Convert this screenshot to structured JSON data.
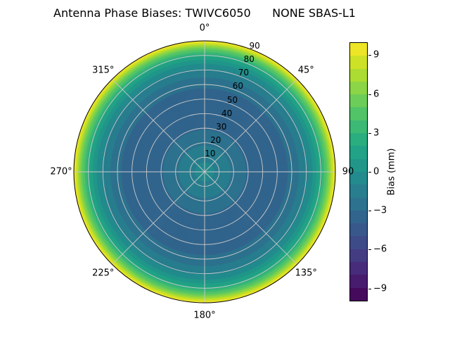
{
  "figure": {
    "background": "#ffffff"
  },
  "chart_data": {
    "type": "polar_contour",
    "title": "Antenna Phase Biases: TWIVC6050      NONE SBAS-L1",
    "radial_axis_max": 90,
    "rlabel_angle_deg": 22.5,
    "symmetry": "azimuthal",
    "theta_labels": [
      {
        "angle_deg": 0,
        "label": "0°"
      },
      {
        "angle_deg": 45,
        "label": "45°"
      },
      {
        "angle_deg": 90,
        "label": "90"
      },
      {
        "angle_deg": 135,
        "label": "135°"
      },
      {
        "angle_deg": 180,
        "label": "180°"
      },
      {
        "angle_deg": 225,
        "label": "225°"
      },
      {
        "angle_deg": 270,
        "label": "270°"
      },
      {
        "angle_deg": 315,
        "label": "315°"
      }
    ],
    "radial_ticks": [
      {
        "r": 10,
        "label": "10"
      },
      {
        "r": 20,
        "label": "20"
      },
      {
        "r": 30,
        "label": "30"
      },
      {
        "r": 40,
        "label": "40"
      },
      {
        "r": 50,
        "label": "50"
      },
      {
        "r": 60,
        "label": "60"
      },
      {
        "r": 70,
        "label": "70"
      },
      {
        "r": 80,
        "label": "80"
      },
      {
        "r": 90,
        "label": "90"
      }
    ],
    "profile": {
      "zenith_deg": [
        0,
        10,
        20,
        30,
        40,
        50,
        60,
        70,
        75,
        80,
        85,
        90
      ],
      "bias_mm": [
        -0.6,
        -1.2,
        -2.2,
        -3.1,
        -3.7,
        -3.6,
        -2.8,
        -1.2,
        0.2,
        2.2,
        5.5,
        10.0
      ]
    },
    "colorbar": {
      "label": "Bias (mm)",
      "vmin": -10,
      "vmax": 10,
      "levels_step": 1,
      "ticks": [
        9,
        6,
        3,
        0,
        -3,
        -6,
        -9
      ],
      "tick_labels": [
        "9",
        "6",
        "3",
        "0",
        "−3",
        "−6",
        "−9"
      ]
    },
    "colormap": {
      "name": "viridis",
      "stops": [
        "#440154",
        "#482475",
        "#414487",
        "#355f8d",
        "#2a788e",
        "#21918c",
        "#22a884",
        "#44bf70",
        "#7ad151",
        "#bddf26",
        "#fde725"
      ]
    },
    "grid": {
      "color": "#c9c9c9",
      "spine_color": "#000000",
      "spoke_step_deg": 45,
      "ring_step": 10
    }
  }
}
